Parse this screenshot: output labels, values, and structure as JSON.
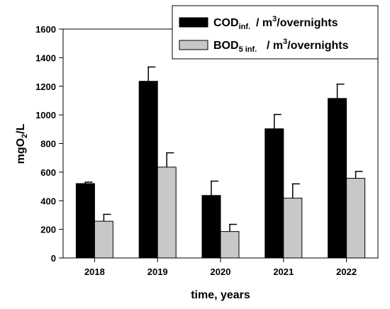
{
  "chart_data": {
    "type": "bar",
    "categories": [
      "2018",
      "2019",
      "2020",
      "2021",
      "2022"
    ],
    "series": [
      {
        "name_main": "COD",
        "name_sub": "inf.",
        "name_rest": "/  m",
        "name_sup": "3",
        "name_tail": "/overnights",
        "color": "#000000",
        "values": [
          520,
          1235,
          437,
          903,
          1115
        ],
        "errors": [
          10,
          100,
          100,
          100,
          100
        ]
      },
      {
        "name_main": "BOD",
        "name_sub": "5 inf.",
        "name_rest": "/  m",
        "name_sup": "3",
        "name_tail": "/overnights",
        "color": "#c8c8c8",
        "values": [
          257,
          635,
          185,
          418,
          557
        ],
        "errors": [
          48,
          100,
          50,
          100,
          48
        ]
      }
    ],
    "ylim": [
      0,
      1600
    ],
    "yticks": [
      "0",
      "200",
      "400",
      "600",
      "800",
      "1000",
      "1200",
      "1400",
      "1600"
    ],
    "ylabel_main": "mgO",
    "ylabel_sub": "2",
    "ylabel_tail": "/L",
    "xlabel": "time, years",
    "grid": false,
    "legend_position": "top-right"
  }
}
